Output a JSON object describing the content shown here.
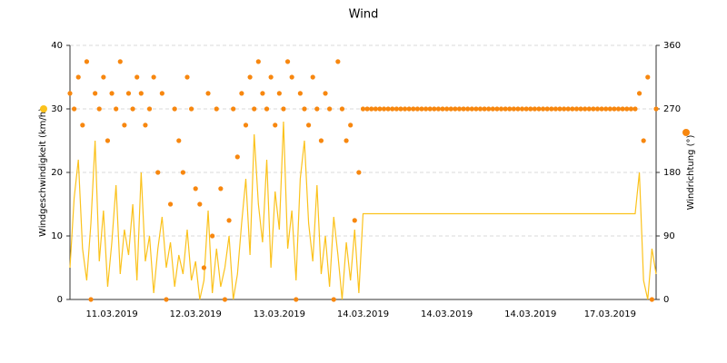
{
  "chart_data": {
    "type": "line-scatter",
    "title": "Wind",
    "ylabel": "Windgeschwindigkeit (km/h)",
    "y2label": "Windrichtung (°)",
    "ylim": [
      0,
      40
    ],
    "yticks": [
      0,
      10,
      20,
      30,
      40
    ],
    "y2lim": [
      0,
      360
    ],
    "y2ticks": [
      0,
      90,
      180,
      270,
      360
    ],
    "grid": true,
    "categories": [
      null,
      null,
      null,
      null,
      null,
      null,
      null,
      null,
      null,
      null,
      "11.03.2019",
      null,
      null,
      null,
      null,
      null,
      null,
      null,
      null,
      null,
      null,
      null,
      null,
      null,
      null,
      null,
      null,
      null,
      null,
      null,
      "12.03.2019",
      null,
      null,
      null,
      null,
      null,
      null,
      null,
      null,
      null,
      null,
      null,
      null,
      null,
      null,
      null,
      null,
      null,
      null,
      null,
      "13.03.2019",
      null,
      null,
      null,
      null,
      null,
      null,
      null,
      null,
      null,
      null,
      null,
      null,
      null,
      null,
      null,
      null,
      null,
      null,
      null,
      "14.03.2019",
      null,
      null,
      null,
      null,
      null,
      null,
      null,
      null,
      null,
      null,
      null,
      null,
      null,
      null,
      null,
      null,
      null,
      null,
      null,
      "14.03.2019",
      null,
      null,
      null,
      null,
      null,
      null,
      null,
      null,
      null,
      null,
      null,
      null,
      null,
      null,
      null,
      null,
      null,
      null,
      null,
      "14.03.2019",
      null,
      null,
      null,
      null,
      null,
      null,
      null,
      null,
      null,
      null,
      null,
      null,
      null,
      null,
      null,
      null,
      null,
      null,
      "17.03.2019",
      null,
      null,
      null,
      null,
      null,
      null,
      null,
      null,
      null,
      null,
      null
    ],
    "series": [
      {
        "type": "line",
        "color": "#fbc21c",
        "values": [
          5,
          16,
          22,
          8,
          3,
          12,
          25,
          6,
          14,
          2,
          9,
          18,
          4,
          11,
          7,
          15,
          3,
          20,
          6,
          10,
          1,
          8,
          13,
          5,
          9,
          2,
          7,
          4,
          11,
          3,
          6,
          0,
          3,
          14,
          1,
          8,
          2,
          5,
          10,
          0,
          4,
          12,
          19,
          7,
          26,
          15,
          9,
          22,
          5,
          17,
          11,
          28,
          8,
          14,
          3,
          19,
          25,
          12,
          6,
          18,
          4,
          10,
          2,
          13,
          7,
          0,
          9,
          3,
          11,
          1,
          13.5,
          13.5,
          13.5,
          13.5,
          13.5,
          13.5,
          13.5,
          13.5,
          13.5,
          13.5,
          13.5,
          13.5,
          13.5,
          13.5,
          13.5,
          13.5,
          13.5,
          13.5,
          13.5,
          13.5,
          13.5,
          13.5,
          13.5,
          13.5,
          13.5,
          13.5,
          13.5,
          13.5,
          13.5,
          13.5,
          13.5,
          13.5,
          13.5,
          13.5,
          13.5,
          13.5,
          13.5,
          13.5,
          13.5,
          13.5,
          13.5,
          13.5,
          13.5,
          13.5,
          13.5,
          13.5,
          13.5,
          13.5,
          13.5,
          13.5,
          13.5,
          13.5,
          13.5,
          13.5,
          13.5,
          13.5,
          13.5,
          13.5,
          13.5,
          13.5,
          13.5,
          13.5,
          13.5,
          13.5,
          13.5,
          13.5,
          20,
          3,
          0,
          8,
          4
        ]
      },
      {
        "type": "scatter",
        "axis": "y2",
        "color": "#f7870f",
        "values": [
          292,
          270,
          315,
          247,
          337,
          0,
          292,
          270,
          315,
          225,
          292,
          270,
          337,
          247,
          292,
          270,
          315,
          292,
          247,
          270,
          315,
          180,
          292,
          0,
          135,
          270,
          225,
          180,
          315,
          270,
          157,
          135,
          45,
          292,
          90,
          270,
          157,
          0,
          112,
          270,
          202,
          292,
          247,
          315,
          270,
          337,
          292,
          270,
          315,
          247,
          292,
          270,
          337,
          315,
          0,
          292,
          270,
          247,
          315,
          270,
          225,
          292,
          270,
          0,
          337,
          270,
          225,
          247,
          112,
          180,
          270,
          270,
          270,
          270,
          270,
          270,
          270,
          270,
          270,
          270,
          270,
          270,
          270,
          270,
          270,
          270,
          270,
          270,
          270,
          270,
          270,
          270,
          270,
          270,
          270,
          270,
          270,
          270,
          270,
          270,
          270,
          270,
          270,
          270,
          270,
          270,
          270,
          270,
          270,
          270,
          270,
          270,
          270,
          270,
          270,
          270,
          270,
          270,
          270,
          270,
          270,
          270,
          270,
          270,
          270,
          270,
          270,
          270,
          270,
          270,
          270,
          270,
          270,
          270,
          270,
          270,
          292,
          225,
          315,
          0,
          270
        ]
      }
    ]
  }
}
